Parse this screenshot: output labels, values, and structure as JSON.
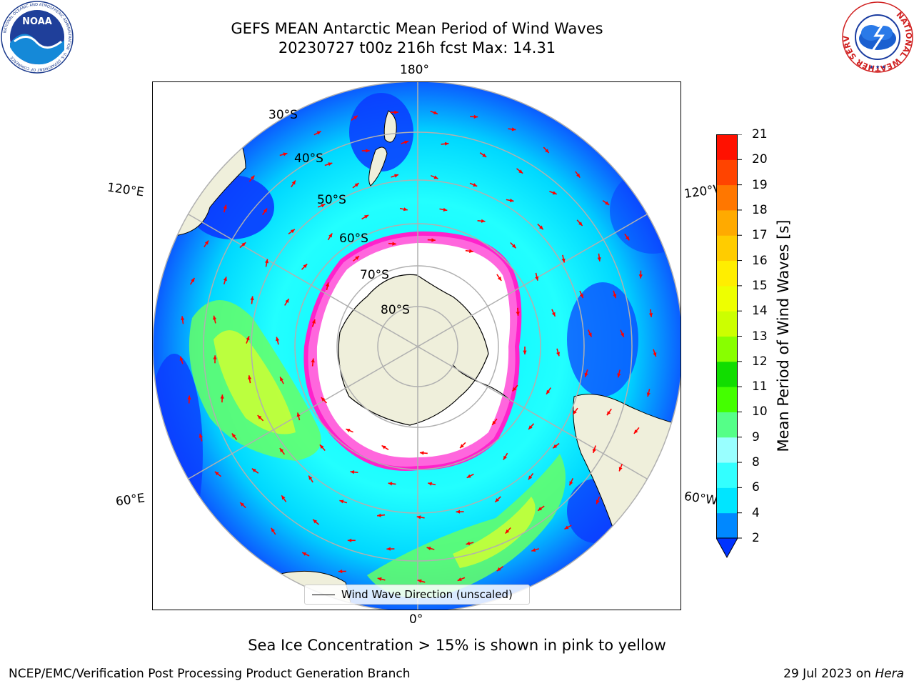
{
  "header": {
    "title_line1": "GEFS MEAN Antarctic Mean Period of Wind Waves",
    "title_line2": "20230727 t00z 216h fcst   Max: 14.31"
  },
  "logos": {
    "left": {
      "name": "NOAA",
      "ring_text": "NATIONAL OCEANIC AND ATMOSPHERIC ADMINISTRATION",
      "ring_text_bottom": "U.S. DEPARTMENT OF COMMERCE"
    },
    "right": {
      "ring_text": "NATIONAL WEATHER SERVICE"
    }
  },
  "map": {
    "projection": "south polar stereographic",
    "lon_labels": {
      "top": "180°",
      "bottom": "0°",
      "upper_left": "120°E",
      "upper_right": "120°W",
      "lower_left": "60°E",
      "lower_right": "60°W"
    },
    "lat_labels": [
      "30°S",
      "40°S",
      "50°S",
      "60°S",
      "70°S",
      "80°S"
    ],
    "legend_text": "Wind Wave Direction (unscaled)",
    "colors": {
      "land": "#efefdb",
      "ice_edge": "#ff33cc",
      "arrow": "#ff0000",
      "grid": "#b0b0b0"
    }
  },
  "colorbar": {
    "label": "Mean Period of Wind Waves [s]",
    "ticks": [
      "2",
      "4",
      "6",
      "8",
      "9",
      "10",
      "11",
      "12",
      "13",
      "14",
      "15",
      "16",
      "17",
      "18",
      "19",
      "20",
      "21"
    ],
    "colors": [
      "#0033ff",
      "#0088ff",
      "#00e5ff",
      "#33ffff",
      "#99ffff",
      "#55ff88",
      "#44ff00",
      "#11dd00",
      "#88ff00",
      "#ccff00",
      "#eeff00",
      "#ffee00",
      "#ffcc00",
      "#ffaa00",
      "#ff7700",
      "#ff4400",
      "#ff1100",
      "#ff0000"
    ],
    "extend": "min"
  },
  "footer": {
    "note": "Sea Ice Concentration > 15% is shown in pink to yellow",
    "left": "NCEP/EMC/Verification Post Processing Product Generation Branch",
    "right_date": "29 Jul 2023 on",
    "right_host": "Hera"
  }
}
